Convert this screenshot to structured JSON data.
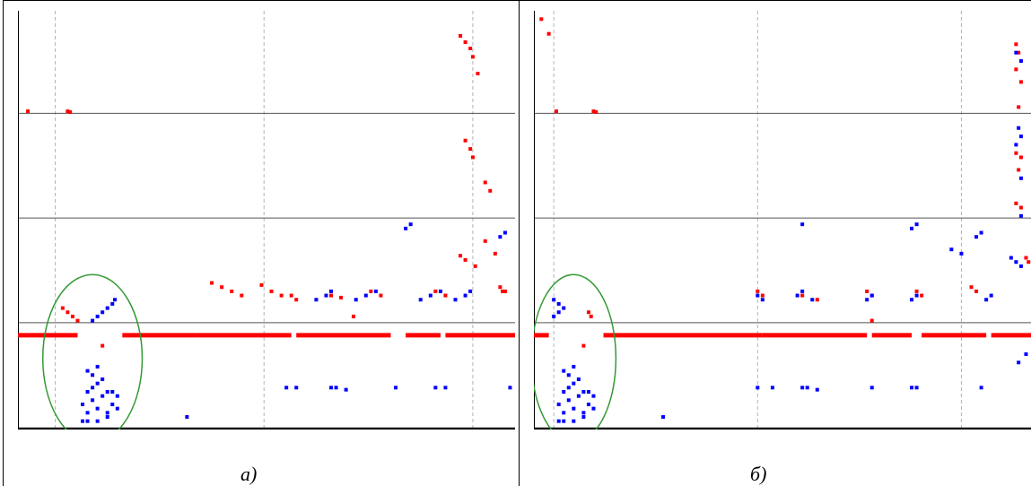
{
  "chart_data": [
    {
      "type": "scatter",
      "caption": "а)",
      "xlim": [
        0,
        100
      ],
      "ylim": [
        0,
        100
      ],
      "grid": {
        "vertical_dashed_x": [
          7.5,
          49.5,
          91.5
        ],
        "horizontal_solid_y": [
          75.5,
          50.5,
          25.5
        ]
      },
      "baseline": {
        "color": "#ff0000",
        "y": 22.5,
        "segments": [
          [
            0,
            12
          ],
          [
            21,
            36
          ],
          [
            36,
            55
          ],
          [
            56,
            75
          ],
          [
            78,
            85
          ],
          [
            86,
            100
          ]
        ]
      },
      "highlight_ellipse": {
        "cx": 15,
        "cy": 17,
        "rx": 10,
        "ry": 20,
        "color": "#339933"
      },
      "series": [
        {
          "color": "#ff0000",
          "points": [
            [
              2,
              76
            ],
            [
              10,
              76
            ],
            [
              10.5,
              75.8
            ],
            [
              89,
              94
            ],
            [
              90,
              92.5
            ],
            [
              91,
              91
            ],
            [
              91.5,
              89
            ],
            [
              92.5,
              85
            ],
            [
              90,
              69
            ],
            [
              91,
              67
            ],
            [
              91.5,
              65
            ],
            [
              94,
              59
            ],
            [
              95,
              57
            ],
            [
              94,
              45
            ],
            [
              89,
              41.5
            ],
            [
              90,
              40.5
            ],
            [
              92,
              39
            ],
            [
              96,
              42
            ],
            [
              97.5,
              33
            ],
            [
              9,
              29
            ],
            [
              10,
              28
            ],
            [
              11,
              27
            ],
            [
              12,
              26
            ],
            [
              39,
              35
            ],
            [
              41,
              34
            ],
            [
              43,
              33
            ],
            [
              45,
              32
            ],
            [
              49,
              34.5
            ],
            [
              51,
              33
            ],
            [
              53,
              32
            ],
            [
              55,
              32
            ],
            [
              56,
              31
            ],
            [
              63,
              32
            ],
            [
              65,
              31.5
            ],
            [
              71,
              33
            ],
            [
              73,
              32
            ],
            [
              84,
              33
            ],
            [
              86,
              32
            ],
            [
              97,
              34
            ],
            [
              98,
              33
            ],
            [
              67.5,
              27
            ],
            [
              17,
              20
            ]
          ]
        },
        {
          "color": "#0000ff",
          "points": [
            [
              15,
              26
            ],
            [
              16,
              27
            ],
            [
              17,
              28
            ],
            [
              18,
              29
            ],
            [
              19,
              30
            ],
            [
              19.5,
              31
            ],
            [
              78,
              48
            ],
            [
              79,
              49
            ],
            [
              60,
              31
            ],
            [
              62,
              32
            ],
            [
              63,
              33
            ],
            [
              68,
              31
            ],
            [
              70,
              32
            ],
            [
              72,
              33
            ],
            [
              81,
              31
            ],
            [
              83,
              32
            ],
            [
              85,
              33
            ],
            [
              88,
              31
            ],
            [
              90,
              32
            ],
            [
              91,
              33
            ],
            [
              97,
              46
            ],
            [
              98,
              47
            ],
            [
              13,
              6
            ],
            [
              14,
              4
            ],
            [
              15,
              7
            ],
            [
              16,
              5
            ],
            [
              17,
              8
            ],
            [
              18,
              3
            ],
            [
              19,
              6
            ],
            [
              14,
              9
            ],
            [
              15,
              10
            ],
            [
              16,
              11
            ],
            [
              17,
              12
            ],
            [
              18,
              9
            ],
            [
              13,
              2
            ],
            [
              14,
              2
            ],
            [
              16,
              2
            ],
            [
              18,
              4
            ],
            [
              20,
              5
            ],
            [
              20,
              8
            ],
            [
              19,
              9
            ],
            [
              15,
              13
            ],
            [
              14,
              14
            ],
            [
              16,
              15
            ],
            [
              34,
              3
            ],
            [
              54,
              10
            ],
            [
              56,
              10
            ],
            [
              63,
              10
            ],
            [
              64,
              10
            ],
            [
              66,
              9.5
            ],
            [
              76,
              10
            ],
            [
              84,
              10
            ],
            [
              86,
              10
            ],
            [
              99,
              10
            ]
          ]
        }
      ]
    },
    {
      "type": "scatter",
      "caption": "б)",
      "xlim": [
        0,
        100
      ],
      "ylim": [
        0,
        100
      ],
      "grid": {
        "vertical_dashed_x": [
          4,
          45,
          86
        ],
        "horizontal_solid_y": [
          75.5,
          50.5,
          25.5
        ]
      },
      "baseline": {
        "color": "#ff0000",
        "y": 22.5,
        "segments": [
          [
            0,
            3
          ],
          [
            14,
            46
          ],
          [
            46,
            67
          ],
          [
            68,
            76
          ],
          [
            78,
            91
          ],
          [
            92,
            100
          ]
        ]
      },
      "highlight_ellipse": {
        "cx": 8,
        "cy": 17,
        "rx": 8.5,
        "ry": 20,
        "color": "#339933"
      },
      "series": [
        {
          "color": "#ff0000",
          "points": [
            [
              1.5,
              98
            ],
            [
              3,
              94.5
            ],
            [
              4.5,
              76
            ],
            [
              12,
              76
            ],
            [
              12.5,
              75.8
            ],
            [
              97,
              92
            ],
            [
              97.5,
              90
            ],
            [
              97,
              86
            ],
            [
              98,
              83
            ],
            [
              97.5,
              77
            ],
            [
              97,
              66
            ],
            [
              98,
              65
            ],
            [
              97.5,
              62
            ],
            [
              97,
              54
            ],
            [
              98,
              53
            ],
            [
              11,
              28
            ],
            [
              11.5,
              27
            ],
            [
              45,
              33
            ],
            [
              46,
              32
            ],
            [
              54,
              32
            ],
            [
              57,
              31
            ],
            [
              67,
              33
            ],
            [
              68,
              32
            ],
            [
              77,
              33
            ],
            [
              78,
              32
            ],
            [
              88,
              34
            ],
            [
              89,
              33
            ],
            [
              99,
              41
            ],
            [
              99.5,
              40
            ],
            [
              68,
              26
            ],
            [
              10,
              20
            ]
          ]
        },
        {
          "color": "#0000ff",
          "points": [
            [
              97,
              90
            ],
            [
              98,
              88
            ],
            [
              97.5,
              72
            ],
            [
              98,
              70
            ],
            [
              97,
              68
            ],
            [
              98,
              60
            ],
            [
              98,
              51
            ],
            [
              54,
              49
            ],
            [
              76,
              48
            ],
            [
              77,
              49
            ],
            [
              89,
              46
            ],
            [
              90,
              47
            ],
            [
              84,
              43
            ],
            [
              86,
              42
            ],
            [
              4,
              31
            ],
            [
              5,
              30
            ],
            [
              4,
              27
            ],
            [
              5,
              28
            ],
            [
              6,
              29
            ],
            [
              45,
              32
            ],
            [
              46,
              31
            ],
            [
              53,
              32
            ],
            [
              54,
              33
            ],
            [
              56,
              31
            ],
            [
              67,
              31
            ],
            [
              68,
              32
            ],
            [
              76,
              31
            ],
            [
              77,
              32
            ],
            [
              91,
              31
            ],
            [
              92,
              32
            ],
            [
              96,
              41
            ],
            [
              97,
              40
            ],
            [
              98,
              39
            ],
            [
              97.5,
              16
            ],
            [
              99,
              18
            ],
            [
              5,
              6
            ],
            [
              6,
              4
            ],
            [
              7,
              7
            ],
            [
              8,
              5
            ],
            [
              9,
              8
            ],
            [
              10,
              3
            ],
            [
              11,
              6
            ],
            [
              6,
              9
            ],
            [
              7,
              10
            ],
            [
              8,
              11
            ],
            [
              9,
              12
            ],
            [
              10,
              9
            ],
            [
              5,
              2
            ],
            [
              6,
              2
            ],
            [
              8,
              2
            ],
            [
              10,
              4
            ],
            [
              12,
              5
            ],
            [
              12,
              8
            ],
            [
              11,
              9
            ],
            [
              7,
              13
            ],
            [
              6,
              14
            ],
            [
              8,
              15
            ],
            [
              26,
              3
            ],
            [
              45,
              10
            ],
            [
              48,
              10
            ],
            [
              54,
              10
            ],
            [
              55,
              10
            ],
            [
              57,
              9.5
            ],
            [
              68,
              10
            ],
            [
              76,
              10
            ],
            [
              77,
              10
            ],
            [
              90,
              10
            ]
          ]
        }
      ]
    }
  ]
}
